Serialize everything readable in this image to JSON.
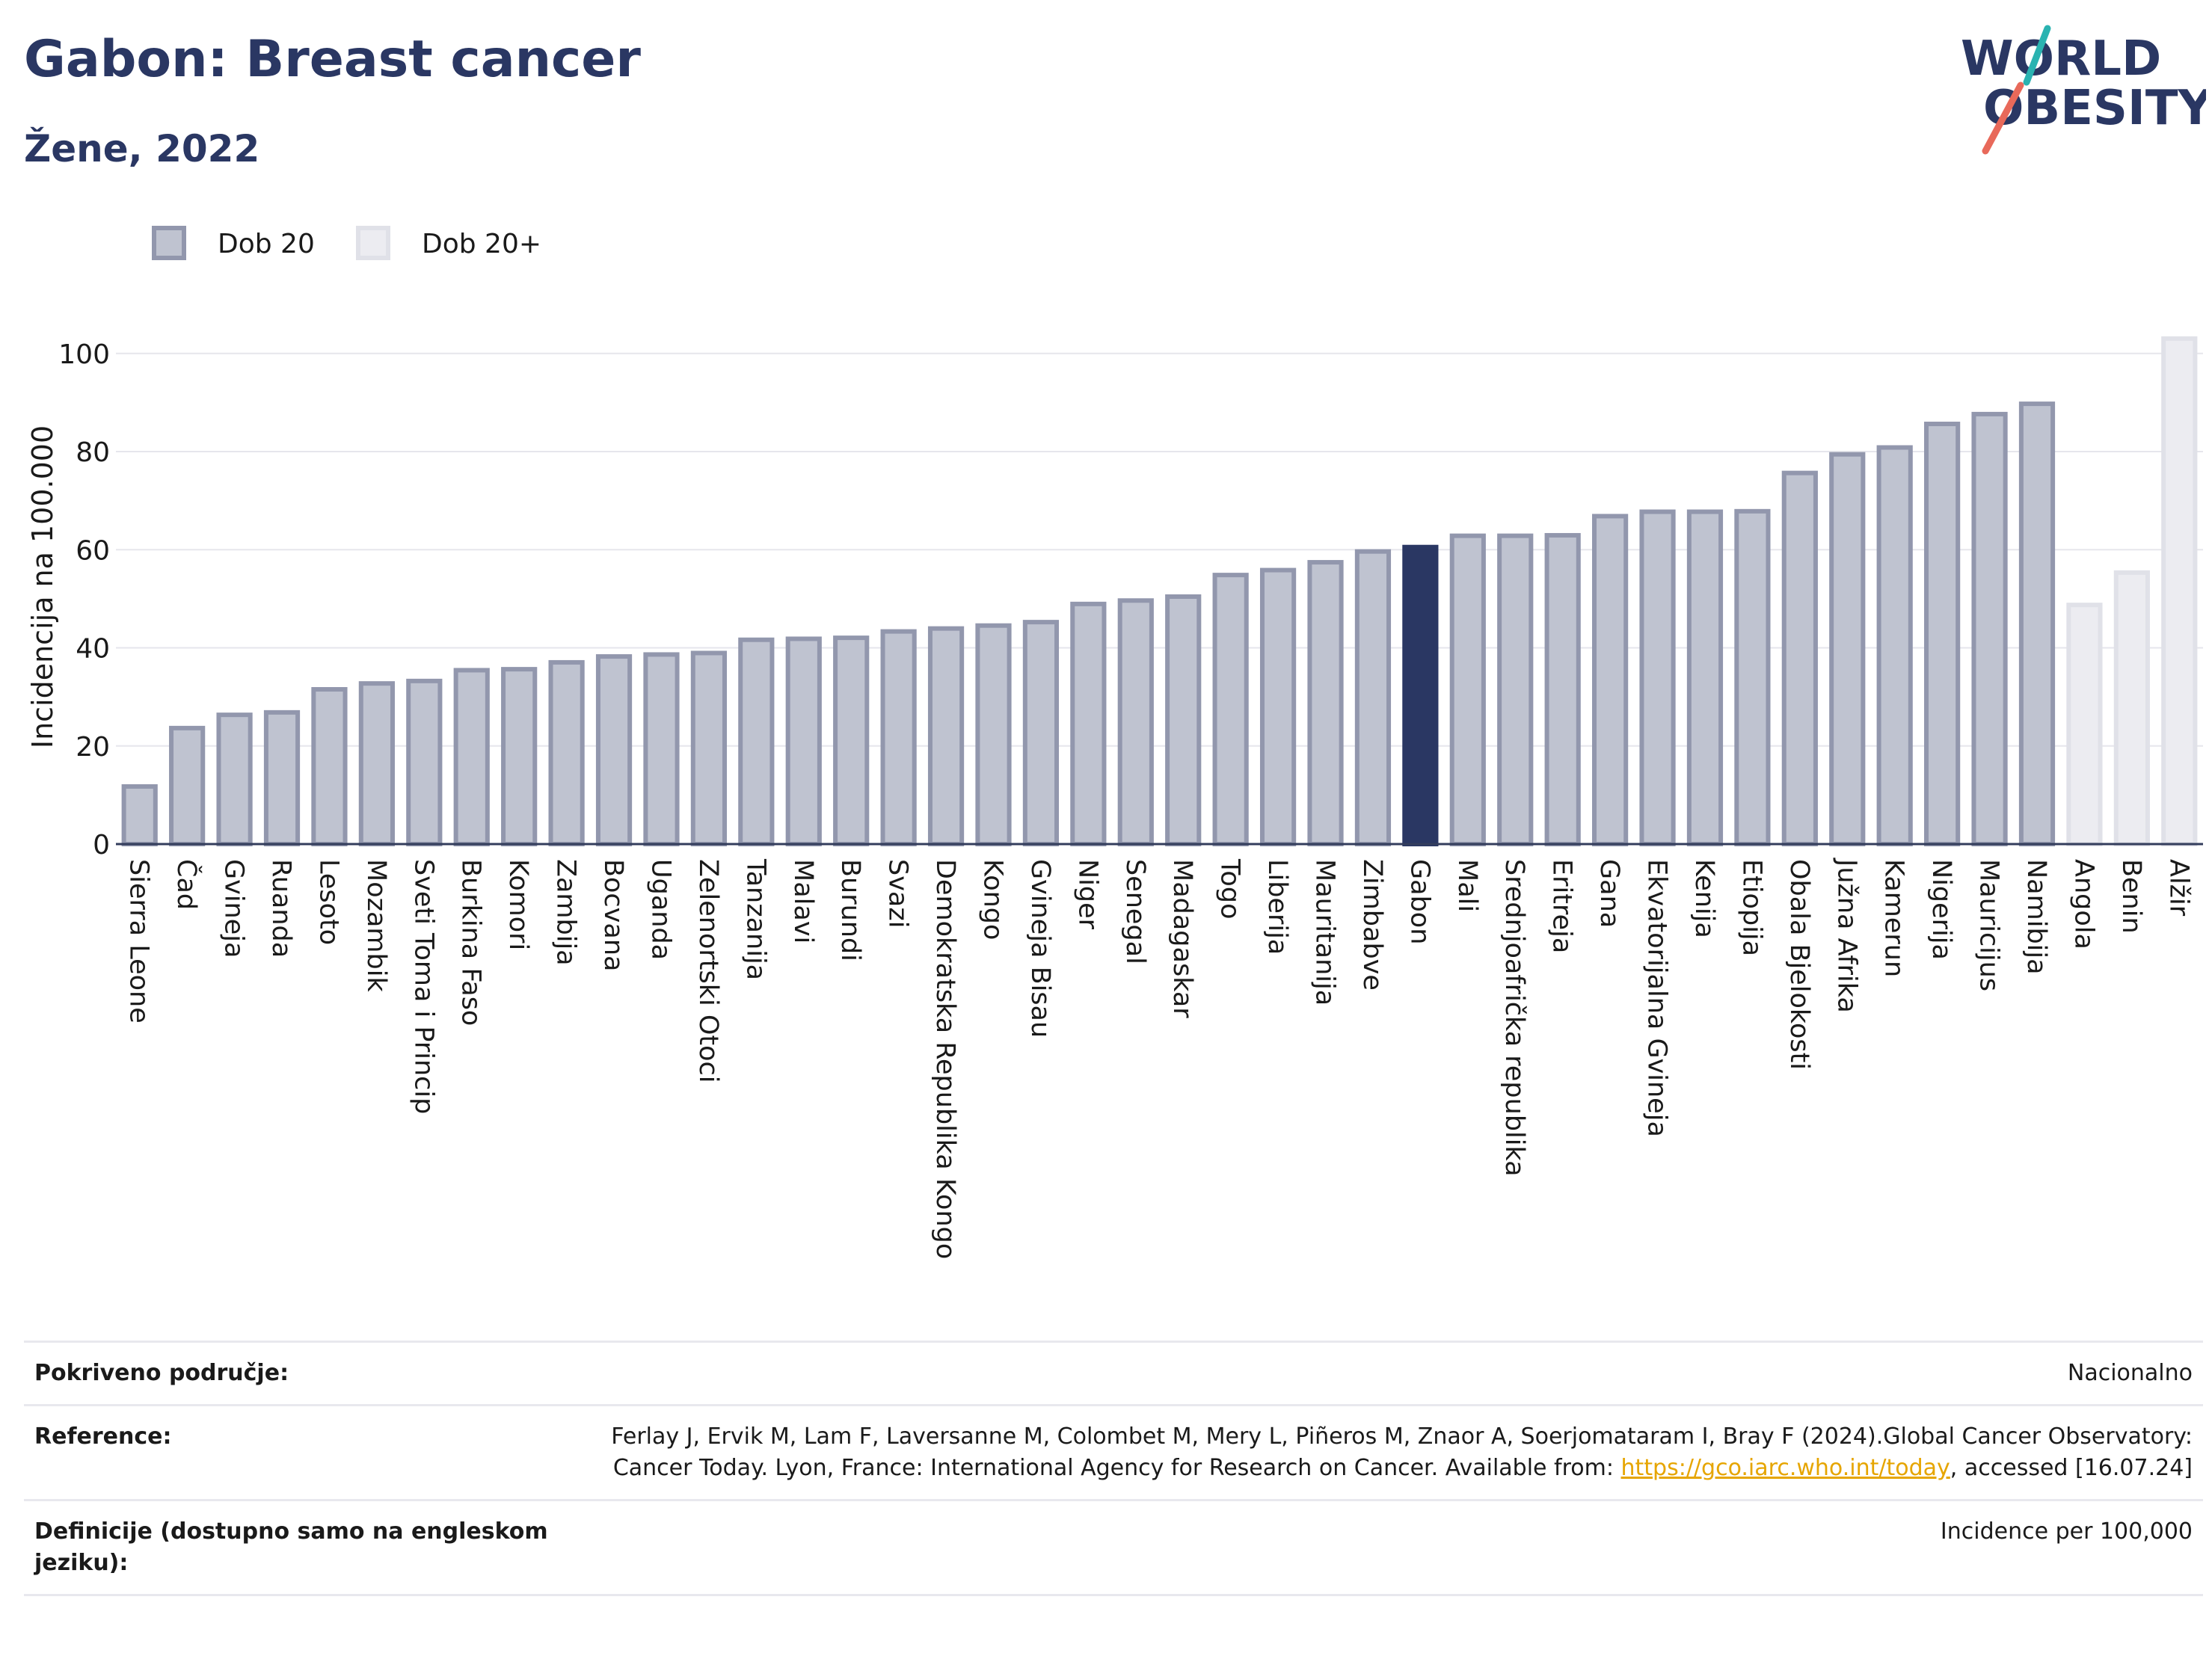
{
  "header": {
    "title": "Gabon: Breast cancer",
    "subtitle": "Žene, 2022"
  },
  "logo": {
    "line1": "WORLD",
    "line2": "OBESITY"
  },
  "colors": {
    "highlight": "#2a3763",
    "series1_fill": "#bfc3d0",
    "series1_stroke": "#9297ad",
    "series2_fill": "#ececf1",
    "series2_stroke": "#e0e1e8",
    "logo_teal": "#2ab3b1",
    "logo_coral": "#e8695a",
    "link": "#e6a500"
  },
  "chart_data": {
    "type": "bar",
    "ylabel": "Incidencija na 100.000",
    "ylim": [
      0,
      105
    ],
    "yticks": [
      0,
      20,
      40,
      60,
      80,
      100
    ],
    "grid": true,
    "legend_position": "top-left",
    "highlight_category": "Gabon",
    "series": [
      {
        "name": "Dob 20",
        "key": "s1"
      },
      {
        "name": "Dob 20+",
        "key": "s2"
      }
    ],
    "bars": [
      {
        "label": "Sierra Leone",
        "value": 12.2,
        "series": "s1"
      },
      {
        "label": "Čad",
        "value": 24.1,
        "series": "s1"
      },
      {
        "label": "Gvineja",
        "value": 26.8,
        "series": "s1"
      },
      {
        "label": "Ruanda",
        "value": 27.3,
        "series": "s1"
      },
      {
        "label": "Lesoto",
        "value": 32.0,
        "series": "s1"
      },
      {
        "label": "Mozambik",
        "value": 33.2,
        "series": "s1"
      },
      {
        "label": "Sveti Toma i Princip",
        "value": 33.7,
        "series": "s1"
      },
      {
        "label": "Burkina Faso",
        "value": 35.9,
        "series": "s1"
      },
      {
        "label": "Komori",
        "value": 36.1,
        "series": "s1"
      },
      {
        "label": "Zambija",
        "value": 37.5,
        "series": "s1"
      },
      {
        "label": "Bocvana",
        "value": 38.7,
        "series": "s1"
      },
      {
        "label": "Uganda",
        "value": 39.1,
        "series": "s1"
      },
      {
        "label": "Zelenortski Otoci",
        "value": 39.4,
        "series": "s1"
      },
      {
        "label": "Tanzanija",
        "value": 42.1,
        "series": "s1"
      },
      {
        "label": "Malavi",
        "value": 42.3,
        "series": "s1"
      },
      {
        "label": "Burundi",
        "value": 42.5,
        "series": "s1"
      },
      {
        "label": "Svazi",
        "value": 43.8,
        "series": "s1"
      },
      {
        "label": "Demokratska Republika Kongo",
        "value": 44.4,
        "series": "s1"
      },
      {
        "label": "Kongo",
        "value": 45.0,
        "series": "s1"
      },
      {
        "label": "Gvineja Bisau",
        "value": 45.7,
        "series": "s1"
      },
      {
        "label": "Niger",
        "value": 49.4,
        "series": "s1"
      },
      {
        "label": "Senegal",
        "value": 50.1,
        "series": "s1"
      },
      {
        "label": "Madagaskar",
        "value": 50.9,
        "series": "s1"
      },
      {
        "label": "Togo",
        "value": 55.3,
        "series": "s1"
      },
      {
        "label": "Liberija",
        "value": 56.3,
        "series": "s1"
      },
      {
        "label": "Mauritanija",
        "value": 57.9,
        "series": "s1"
      },
      {
        "label": "Zimbabve",
        "value": 60.1,
        "series": "s1"
      },
      {
        "label": "Gabon",
        "value": 61.0,
        "series": "s1"
      },
      {
        "label": "Mali",
        "value": 63.3,
        "series": "s1"
      },
      {
        "label": "Srednjoafrička republika",
        "value": 63.3,
        "series": "s1"
      },
      {
        "label": "Eritreja",
        "value": 63.4,
        "series": "s1"
      },
      {
        "label": "Gana",
        "value": 67.3,
        "series": "s1"
      },
      {
        "label": "Ekvatorijalna Gvineja",
        "value": 68.2,
        "series": "s1"
      },
      {
        "label": "Kenija",
        "value": 68.2,
        "series": "s1"
      },
      {
        "label": "Etiopija",
        "value": 68.3,
        "series": "s1"
      },
      {
        "label": "Obala Bjelokosti",
        "value": 76.1,
        "series": "s1"
      },
      {
        "label": "Južna Afrika",
        "value": 79.9,
        "series": "s1"
      },
      {
        "label": "Kamerun",
        "value": 81.3,
        "series": "s1"
      },
      {
        "label": "Nigerija",
        "value": 86.1,
        "series": "s1"
      },
      {
        "label": "Mauricijus",
        "value": 88.1,
        "series": "s1"
      },
      {
        "label": "Namibija",
        "value": 90.2,
        "series": "s1"
      },
      {
        "label": "Angola",
        "value": 49.2,
        "series": "s2"
      },
      {
        "label": "Benin",
        "value": 55.8,
        "series": "s2"
      },
      {
        "label": "Alžir",
        "value": 103.5,
        "series": "s2"
      }
    ]
  },
  "info": {
    "rows": [
      {
        "label": "Pokriveno područje:",
        "value": "Nacionalno"
      },
      {
        "label": "Reference:",
        "value_before": "Ferlay J, Ervik M, Lam F, Laversanne M, Colombet M, Mery L, Piñeros M, Znaor A, Soerjomataram I, Bray F (2024).Global Cancer Observatory: Cancer Today. Lyon, France: International Agency for Research on Cancer. Available from: ",
        "link": "https://gco.iarc.who.int/today",
        "value_after": ", accessed [16.07.24]"
      },
      {
        "label": "Definicije (dostupno samo na engleskom jeziku):",
        "value": "Incidence per 100,000"
      }
    ]
  }
}
